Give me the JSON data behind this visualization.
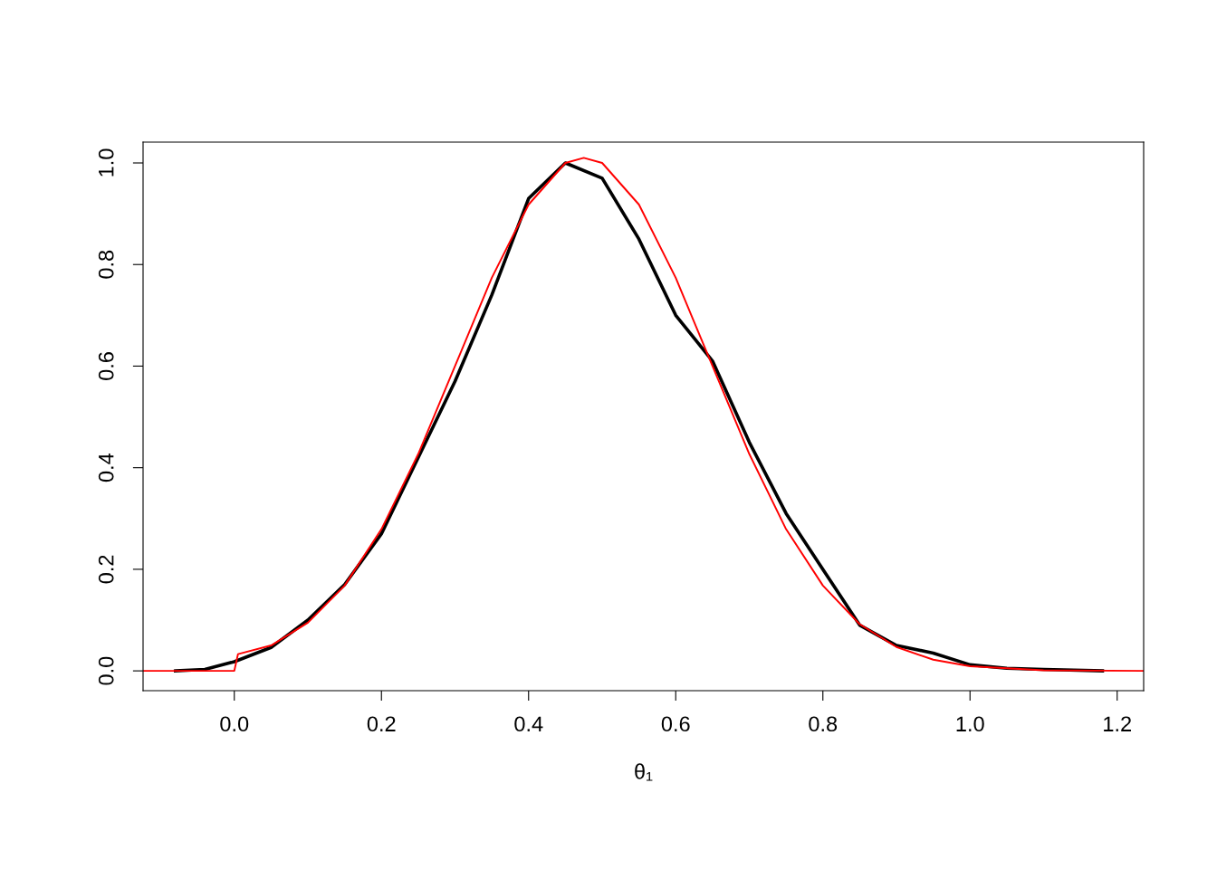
{
  "chart_data": {
    "type": "line",
    "xlabel": "θ₁",
    "xlim": [
      -0.124,
      1.236
    ],
    "ylim": [
      -0.039,
      1.041
    ],
    "xticks": [
      {
        "value": 0,
        "label": "0.0"
      },
      {
        "value": 0.2,
        "label": "0.2"
      },
      {
        "value": 0.4,
        "label": "0.4"
      },
      {
        "value": 0.6,
        "label": "0.6"
      },
      {
        "value": 0.8,
        "label": "0.8"
      },
      {
        "value": 1.0,
        "label": "1.0"
      },
      {
        "value": 1.2,
        "label": "1.2"
      }
    ],
    "yticks": [
      {
        "value": 0,
        "label": "0.0"
      },
      {
        "value": 0.2,
        "label": "0.2"
      },
      {
        "value": 0.4,
        "label": "0.4"
      },
      {
        "value": 0.6,
        "label": "0.6"
      },
      {
        "value": 0.8,
        "label": "0.8"
      },
      {
        "value": 1.0,
        "label": "1.0"
      }
    ],
    "grid": false,
    "legend": false,
    "marker": "none",
    "line_style": "solid",
    "series": [
      {
        "color": "#000000",
        "x": [
          -0.08,
          -0.04,
          0,
          0.05,
          0.1,
          0.15,
          0.2,
          0.25,
          0.3,
          0.35,
          0.4,
          0.45,
          0.5,
          0.55,
          0.6,
          0.65,
          0.7,
          0.75,
          0.8,
          0.85,
          0.9,
          0.95,
          1.0,
          1.05,
          1.1,
          1.18
        ],
        "values": [
          0,
          0.003,
          0.018,
          0.046,
          0.1,
          0.17,
          0.27,
          0.42,
          0.57,
          0.74,
          0.93,
          1.0,
          0.97,
          0.85,
          0.7,
          0.61,
          0.45,
          0.31,
          0.2,
          0.09,
          0.05,
          0.035,
          0.012,
          0.005,
          0.003,
          0
        ]
      },
      {
        "color": "#ff0000",
        "x": [
          -0.124,
          0,
          0.005,
          0.05,
          0.1,
          0.15,
          0.2,
          0.25,
          0.3,
          0.35,
          0.4,
          0.45,
          0.475,
          0.5,
          0.55,
          0.6,
          0.65,
          0.7,
          0.75,
          0.8,
          0.85,
          0.9,
          0.95,
          1.0,
          1.1,
          1.236
        ],
        "values": [
          0,
          0,
          0.033,
          0.05,
          0.095,
          0.168,
          0.279,
          0.427,
          0.6,
          0.774,
          0.918,
          1.0,
          1.01,
          1.0,
          0.918,
          0.774,
          0.6,
          0.427,
          0.279,
          0.168,
          0.092,
          0.047,
          0.022,
          0.009,
          0.001,
          0
        ]
      }
    ]
  }
}
